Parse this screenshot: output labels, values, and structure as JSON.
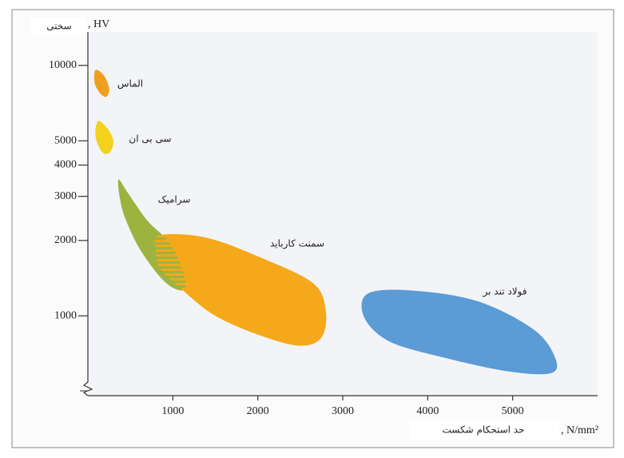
{
  "chart_data": {
    "type": "region",
    "y_label": "سختی",
    "y_unit": ", HV",
    "x_label": "حد استحکام شکست",
    "x_unit": ", N/mm²",
    "xlim": [
      0,
      6000
    ],
    "xticks": [
      1000,
      2000,
      3000,
      4000,
      5000
    ],
    "ylim": [
      480,
      13600
    ],
    "yticks": [
      1000,
      2000,
      3000,
      4000,
      5000,
      10000
    ],
    "log_y": true,
    "series": [
      {
        "name": "الماس",
        "color": "#f0a01e",
        "x": [
          90,
          190,
          250,
          220,
          150,
          80
        ],
        "y": [
          9600,
          9100,
          8100,
          7500,
          7700,
          8500
        ]
      },
      {
        "name": "سی بی ان",
        "color": "#f3d21e",
        "x": [
          120,
          230,
          300,
          260,
          170,
          90
        ],
        "y": [
          6000,
          5600,
          5000,
          4500,
          4500,
          5200
        ]
      },
      {
        "name": "سرامیک",
        "color": "#9db33f",
        "x": [
          360,
          470,
          700,
          940,
          1080,
          1150,
          1030,
          850,
          610,
          450,
          380
        ],
        "y": [
          3500,
          3100,
          2400,
          2000,
          1650,
          1300,
          1280,
          1430,
          1850,
          2400,
          2900
        ]
      },
      {
        "name": "سمنت کارباید",
        "color": "#f5a81a",
        "x": [
          850,
          1400,
          2050,
          2650,
          2800,
          2750,
          2500,
          2050,
          1500,
          1100,
          850,
          800
        ],
        "y": [
          2100,
          2050,
          1700,
          1350,
          1050,
          820,
          760,
          830,
          1000,
          1280,
          1550,
          1850
        ]
      },
      {
        "name": "فولاد تند بر",
        "color": "#5b9bd6",
        "x": [
          3300,
          3850,
          4600,
          5250,
          5500,
          5450,
          4950,
          4200,
          3550,
          3250
        ],
        "y": [
          1230,
          1260,
          1140,
          880,
          680,
          590,
          600,
          680,
          790,
          990
        ]
      }
    ]
  }
}
